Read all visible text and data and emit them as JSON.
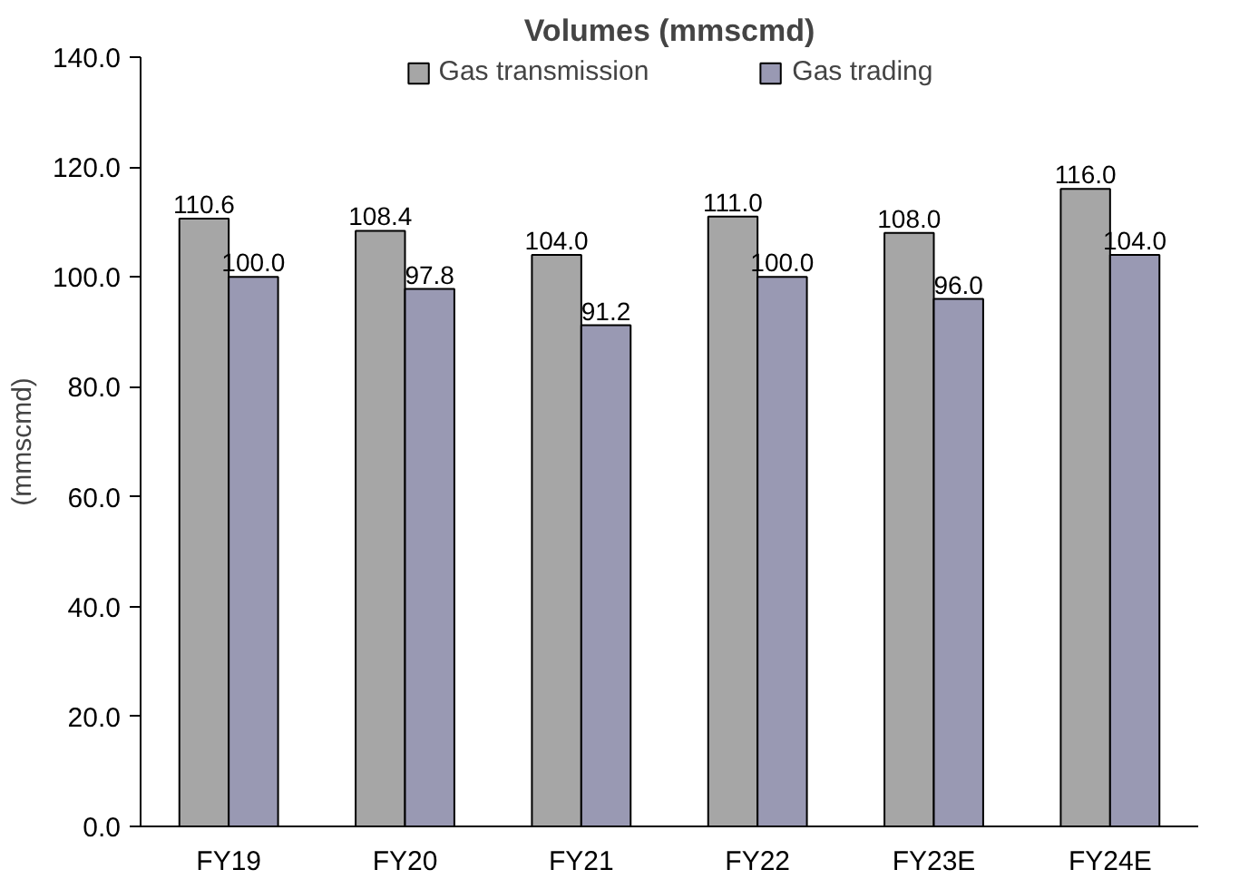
{
  "chart_data": {
    "type": "bar",
    "title": "Volumes (mmscmd)",
    "ylabel": "(mmscmd)",
    "categories": [
      "FY19",
      "FY20",
      "FY21",
      "FY22",
      "FY23E",
      "FY24E"
    ],
    "series": [
      {
        "name": "Gas transmission",
        "color": "#a6a6a6",
        "values": [
          110.6,
          108.4,
          104.0,
          111.0,
          108.0,
          116.0
        ]
      },
      {
        "name": "Gas trading",
        "color": "#9999b3",
        "values": [
          100.0,
          97.8,
          91.2,
          100.0,
          96.0,
          104.0
        ]
      }
    ],
    "ylim": [
      0,
      140
    ],
    "yticks": [
      {
        "value": 0,
        "label": "0.0"
      },
      {
        "value": 20,
        "label": "20.0"
      },
      {
        "value": 40,
        "label": "40.0"
      },
      {
        "value": 60,
        "label": "60.0"
      },
      {
        "value": 80,
        "label": "80.0"
      },
      {
        "value": 100,
        "label": "100.0"
      },
      {
        "value": 120,
        "label": "120.0"
      },
      {
        "value": 140,
        "label": "140.0"
      }
    ],
    "value_labels": [
      [
        "110.6",
        "108.4",
        "104.0",
        "111.0",
        "108.0",
        "116.0"
      ],
      [
        "100.0",
        "97.8",
        "91.2",
        "100.0",
        "96.0",
        "104.0"
      ]
    ],
    "grid": false,
    "legend": "top"
  }
}
